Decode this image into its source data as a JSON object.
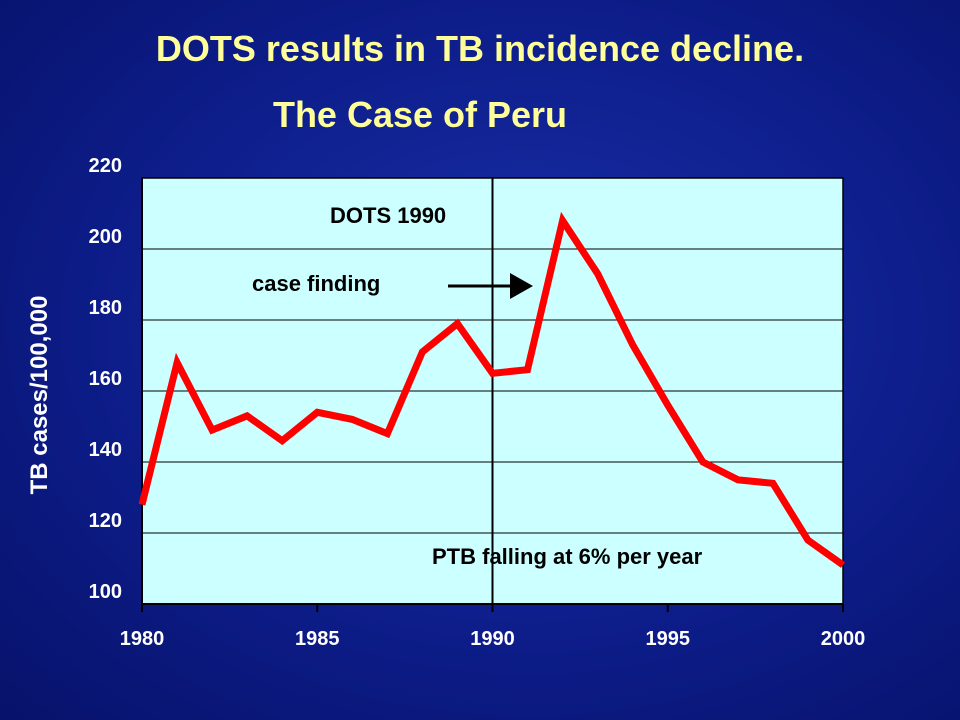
{
  "slide": {
    "title_line1": "DOTS results in TB incidence decline.",
    "title_line2": "The Case of Peru"
  },
  "chart_data": {
    "type": "line",
    "title": "DOTS results in TB incidence decline. The Case of Peru",
    "xlabel": "",
    "ylabel": "TB cases/100,000",
    "xlim": [
      1980,
      2000
    ],
    "ylim": [
      100,
      220
    ],
    "x_ticks": [
      1980,
      1985,
      1990,
      1995,
      2000
    ],
    "y_ticks": [
      100,
      120,
      140,
      160,
      180,
      200,
      220
    ],
    "grid": "horizontal",
    "plot_background": "#ccffff",
    "series": [
      {
        "color": "#ff0000",
        "x": [
          1980,
          1981,
          1982,
          1983,
          1984,
          1985,
          1986,
          1987,
          1988,
          1989,
          1990,
          1991,
          1992,
          1993,
          1994,
          1995,
          1996,
          1997,
          1998,
          1999,
          2000
        ],
        "y": [
          128,
          168,
          149,
          153,
          146,
          154,
          152,
          148,
          171,
          179,
          165,
          166,
          208,
          193,
          173,
          156,
          140,
          135,
          134,
          118,
          111
        ]
      }
    ],
    "annotations": {
      "dots_label": "DOTS 1990",
      "dots_year": 1990,
      "case_finding": "case finding",
      "trend": "PTB falling at 6% per year"
    }
  }
}
